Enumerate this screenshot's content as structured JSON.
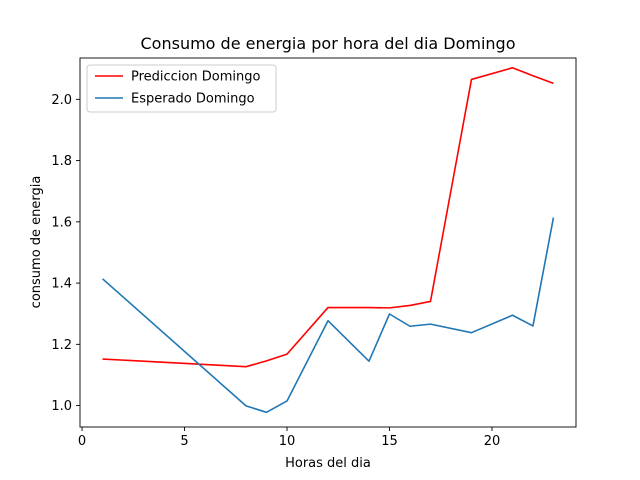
{
  "chart_data": {
    "type": "line",
    "title": "Consumo de energia por hora del dia Domingo",
    "xlabel": "Horas del dia",
    "ylabel": "consumo de energia",
    "xlim": [
      -0.1,
      24.1
    ],
    "ylim": [
      0.93,
      2.135
    ],
    "xticks": [
      0,
      5,
      10,
      15,
      20
    ],
    "xtick_labels": [
      "0",
      "5",
      "10",
      "15",
      "20"
    ],
    "yticks": [
      1.0,
      1.2,
      1.4,
      1.6,
      1.8,
      2.0
    ],
    "ytick_labels": [
      "1.0",
      "1.2",
      "1.4",
      "1.6",
      "1.8",
      "2.0"
    ],
    "grid": false,
    "legend_position": "top-left",
    "series": [
      {
        "name": "Prediccion Domingo",
        "color": "#ff0000",
        "x": [
          1,
          8,
          9,
          10,
          12,
          14,
          15,
          16,
          17,
          19,
          21,
          22,
          23
        ],
        "values": [
          1.152,
          1.127,
          1.146,
          1.168,
          1.32,
          1.32,
          1.319,
          1.327,
          1.34,
          2.065,
          2.103,
          2.077,
          2.052
        ]
      },
      {
        "name": "Esperado Domingo",
        "color": "#1f77b4",
        "x": [
          1,
          8,
          9,
          10,
          12,
          14,
          15,
          16,
          17,
          19,
          21,
          22,
          23
        ],
        "values": [
          1.414,
          0.999,
          0.978,
          1.015,
          1.277,
          1.145,
          1.299,
          1.259,
          1.266,
          1.238,
          1.295,
          1.26,
          1.614
        ]
      }
    ]
  }
}
